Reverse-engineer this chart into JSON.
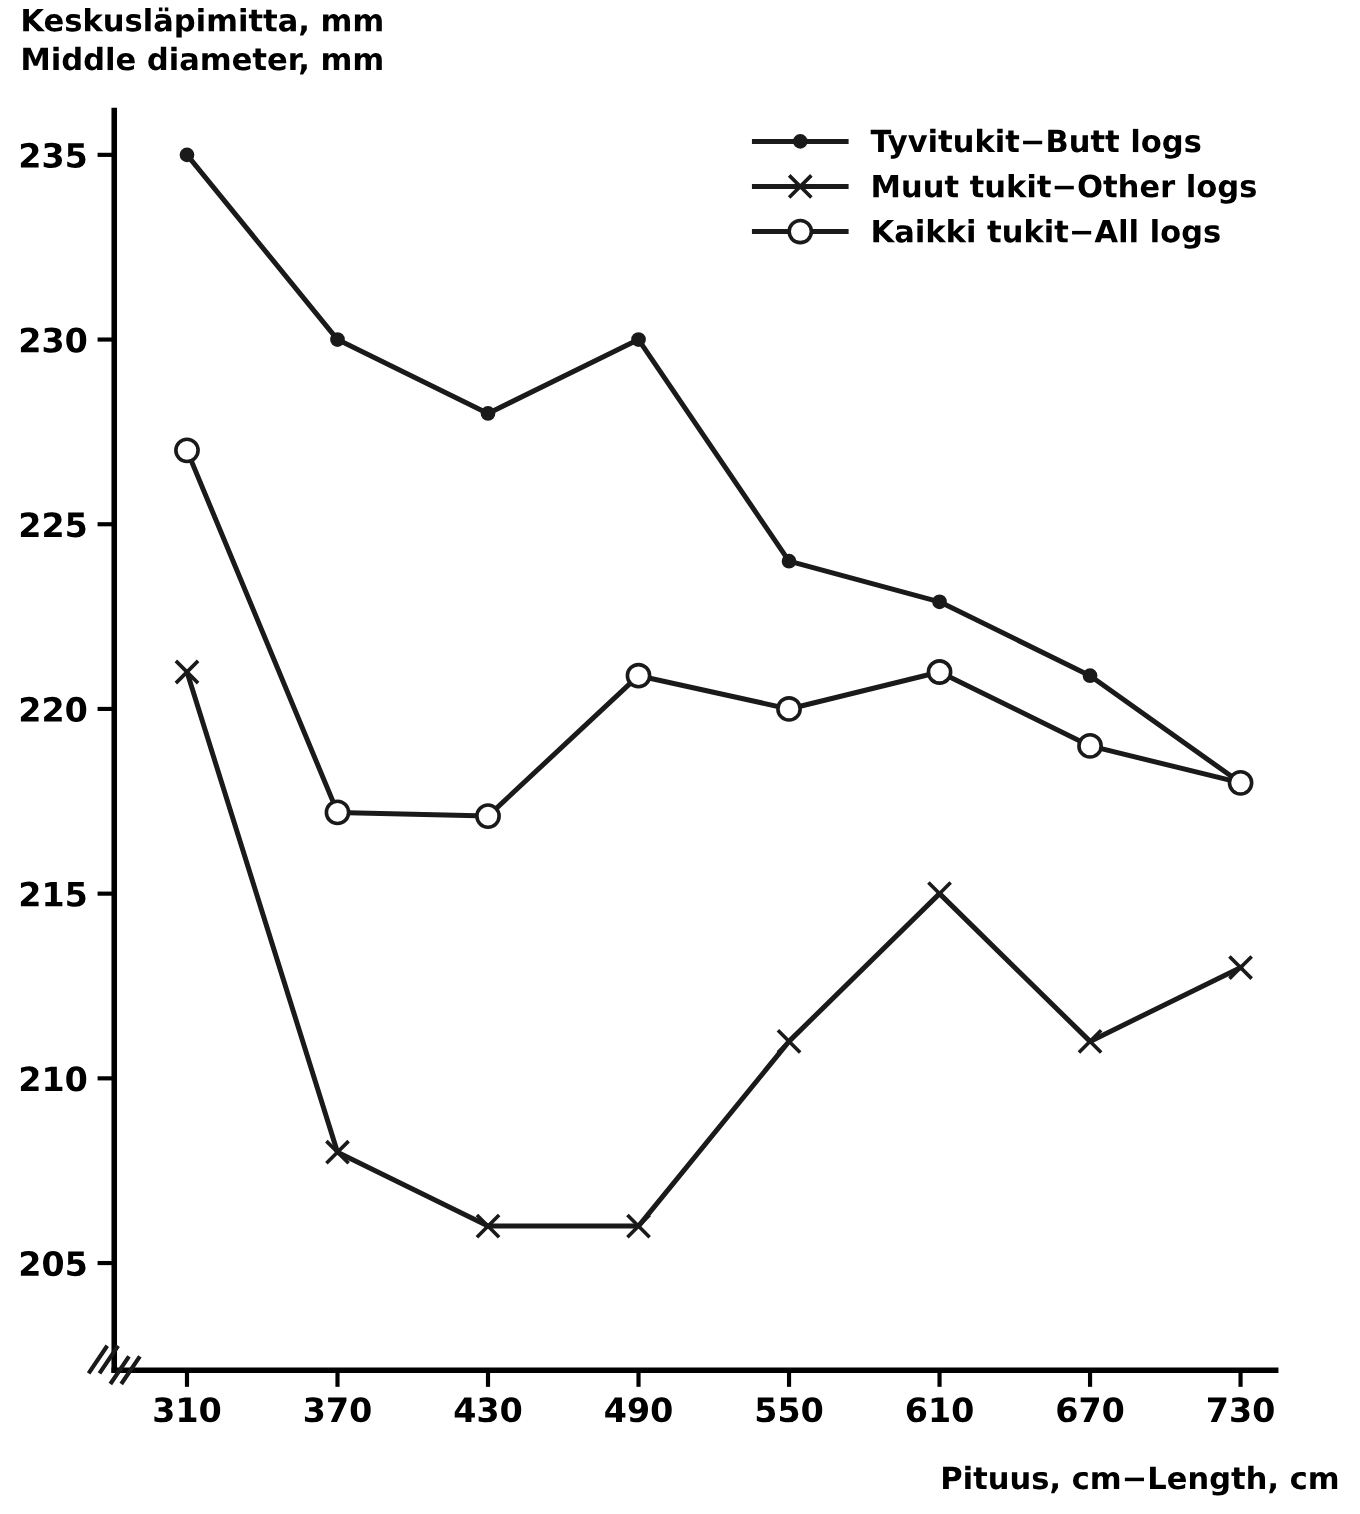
{
  "chart_data": {
    "type": "line",
    "ylabel": "Keskusläpimitta, mm\nMiddle diameter, mm",
    "xlabel": "Pituus, cm−Length, cm",
    "x": [
      310,
      370,
      430,
      490,
      550,
      610,
      670,
      730
    ],
    "series": [
      {
        "name": "Tyvitukit−Butt logs",
        "color": "#1a1a1a",
        "marker": "circle",
        "values": [
          235,
          230,
          228,
          230,
          224,
          222.9,
          220.9,
          218
        ]
      },
      {
        "name": "Muut tukit−Other logs",
        "color": "#1a1a1a",
        "marker": "cross",
        "values": [
          221,
          208,
          206,
          206,
          211,
          215,
          211,
          213
        ]
      },
      {
        "name": "Kaikki tukit−All logs",
        "color": "#1a1a1a",
        "marker": "circle",
        "values": [
          227,
          217.2,
          217.1,
          220.9,
          220,
          221,
          219,
          218
        ]
      }
    ],
    "xlim": [
      281,
      744
    ],
    "ylim": [
      202.1,
      236.2
    ],
    "xticks": [
      310,
      370,
      430,
      490,
      550,
      610,
      670,
      730
    ],
    "yticks": [
      205,
      210,
      215,
      220,
      225,
      230,
      235
    ],
    "grid": false,
    "legend": "top right",
    "line_style": "solid"
  }
}
